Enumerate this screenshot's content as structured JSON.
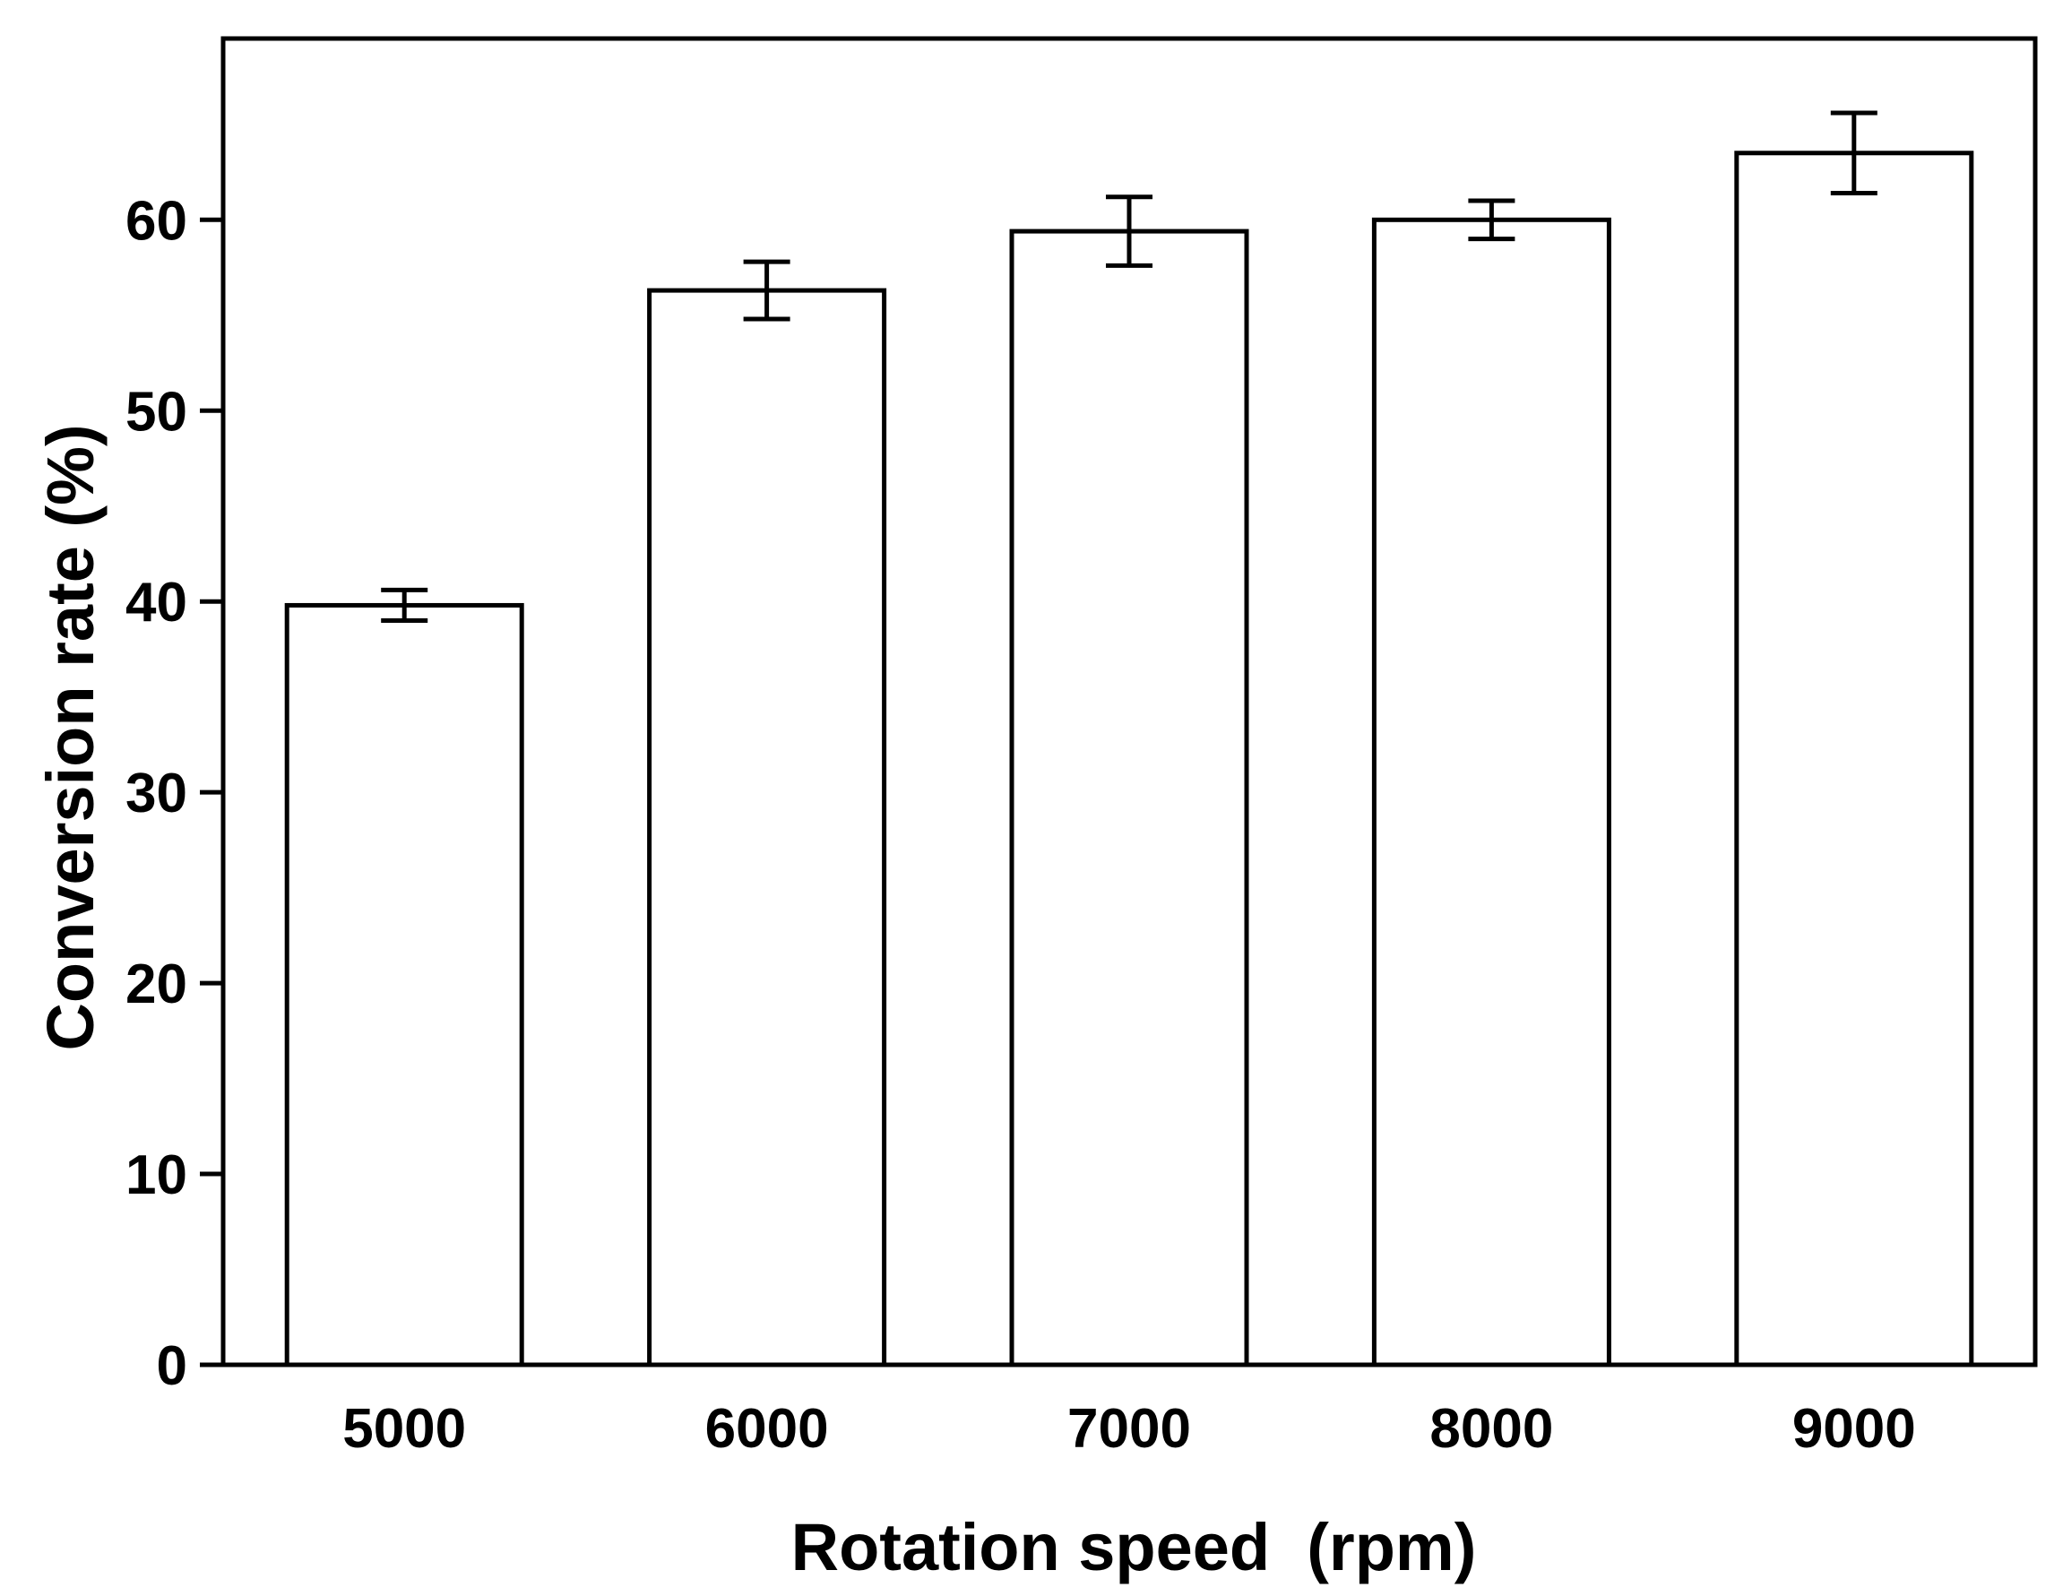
{
  "chart_data": {
    "type": "bar",
    "categories": [
      "5000",
      "6000",
      "7000",
      "8000",
      "9000"
    ],
    "values": [
      39.8,
      56.3,
      59.4,
      60.0,
      63.5
    ],
    "errors": [
      0.8,
      1.5,
      1.8,
      1.0,
      2.1
    ],
    "title": "",
    "xlabel": "Rotation speed  (rpm)",
    "ylabel": "Conversion rate (%)",
    "ylim": [
      0,
      69.5
    ],
    "yticks": [
      "0",
      "10",
      "20",
      "30",
      "40",
      "50",
      "60"
    ],
    "grid": false,
    "legend": "none",
    "colors": {
      "bar_fill": "#ffffff",
      "bar_stroke": "#000000",
      "axis": "#000000",
      "background": "#ffffff"
    }
  }
}
